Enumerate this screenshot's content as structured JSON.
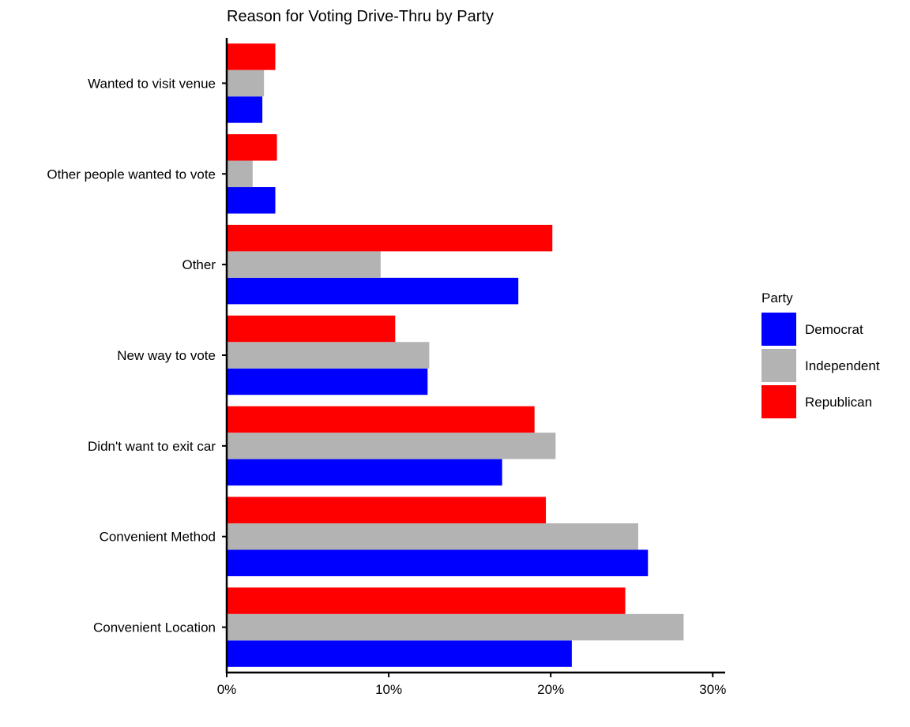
{
  "chart_data": {
    "type": "bar",
    "orientation": "horizontal",
    "title": "Reason for Voting Drive-Thru by Party",
    "xlabel": "",
    "ylabel": "",
    "xlim": [
      0,
      30.5
    ],
    "x_ticks": [
      0,
      10,
      20,
      30
    ],
    "x_tick_labels": [
      "0%",
      "10%",
      "20%",
      "30%"
    ],
    "categories": [
      "Convenient Location",
      "Convenient Method",
      "Didn't want to exit car",
      "New way to vote",
      "Other",
      "Other people wanted to vote",
      "Wanted to visit venue"
    ],
    "series": [
      {
        "name": "Democrat",
        "color": "#0000FF",
        "values": [
          21.3,
          26.0,
          17.0,
          12.4,
          18.0,
          3.0,
          2.2
        ]
      },
      {
        "name": "Independent",
        "color": "#B3B3B3",
        "values": [
          28.2,
          25.4,
          20.3,
          12.5,
          9.5,
          1.6,
          2.3
        ]
      },
      {
        "name": "Republican",
        "color": "#FF0000",
        "values": [
          24.6,
          19.7,
          19.0,
          10.4,
          20.1,
          3.1,
          3.0
        ]
      }
    ],
    "legend": {
      "title": "Party",
      "placement": "right"
    },
    "grid": false
  }
}
